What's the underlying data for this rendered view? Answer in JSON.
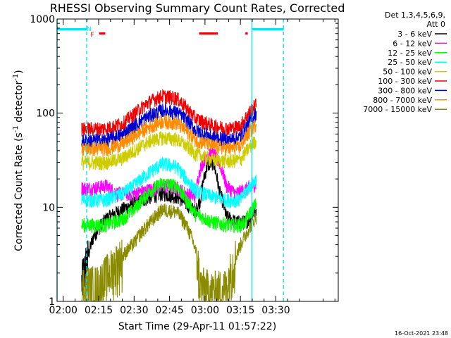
{
  "chart_data": {
    "type": "line",
    "title": "RHESSI Observing Summary Count Rates, Corrected",
    "xlabel": "Start Time (29-Apr-11 01:57:22)",
    "ylabel": "Corrected Count Rate (s",
    "ylabel_sup1": "-1",
    "ylabel_mid": " detector",
    "ylabel_sup2": "-1",
    "ylabel_end": ")",
    "footer": "16-Oct-2021 23:48",
    "y_scale": "log",
    "ylim": [
      1,
      1000
    ],
    "xlim_min": [
      117.4,
      236.4
    ],
    "x_unit": "minutes after 00:00 UT, 29-Apr-2011",
    "x_ticks": [
      {
        "min": 120,
        "label": "02:00"
      },
      {
        "min": 135,
        "label": "02:15"
      },
      {
        "min": 150,
        "label": "02:30"
      },
      {
        "min": 165,
        "label": "02:45"
      },
      {
        "min": 180,
        "label": "03:00"
      },
      {
        "min": 195,
        "label": "03:15"
      },
      {
        "min": 210,
        "label": "03:30"
      }
    ],
    "y_ticks": [
      {
        "value": 1,
        "label": "1"
      },
      {
        "value": 10,
        "label": "10"
      },
      {
        "value": 100,
        "label": "100"
      },
      {
        "value": 1000,
        "label": "1000"
      }
    ],
    "legend_header": [
      "Det 1,3,4,5,6,9,",
      "Att 0"
    ],
    "legend_position": "right, outside plot",
    "night_lines_min": [
      117.4,
      129.9,
      199.9,
      213.2
    ],
    "flag_markers": [
      {
        "label": "N",
        "color": "#00e5ee",
        "min": 130.9
      },
      {
        "label": "F",
        "color": "#ee0000",
        "min": 132.3
      }
    ],
    "flag_bars": [
      {
        "color": "#ee0000",
        "start": 135.2,
        "end": 137.8
      },
      {
        "color": "#ee0000",
        "start": 177.5,
        "end": 185.4
      },
      {
        "color": "#ee0000",
        "start": 197.1,
        "end": 198.1
      }
    ],
    "saa_bars": [
      {
        "color": "#00e5ee",
        "start": 117.4,
        "end": 130.0
      },
      {
        "color": "#00e5ee",
        "start": 200.1,
        "end": 213.3
      }
    ],
    "series": [
      {
        "name": "3 - 6 keV",
        "color": "#000000",
        "key_min": [
          127.8,
          130.5,
          133,
          138,
          145,
          150,
          157,
          162,
          168,
          172,
          176,
          178,
          181,
          183.5,
          186,
          189,
          193,
          197,
          199,
          201.7
        ],
        "key_val": [
          1.6,
          3,
          5,
          7.5,
          9.5,
          11,
          13,
          14,
          13,
          11,
          9,
          12,
          28,
          30,
          15,
          8,
          7,
          7,
          7.5,
          9.5
        ]
      },
      {
        "name": "6 - 12 keV",
        "color": "#ff00ff",
        "key_min": [
          127.8,
          133,
          138,
          143,
          150,
          157,
          162,
          168,
          172,
          176,
          178,
          181,
          183.5,
          186,
          189,
          193,
          197,
          201.7
        ],
        "key_val": [
          16,
          16,
          17,
          14,
          14,
          15.5,
          17,
          16,
          14,
          13,
          26,
          37,
          37,
          30,
          17,
          14,
          15.5,
          18
        ]
      },
      {
        "name": "12 - 25 keV",
        "color": "#00ff00",
        "key_min": [
          127.8,
          138,
          145,
          150,
          157,
          162,
          168,
          172,
          176,
          183,
          190,
          195,
          197,
          201.7
        ],
        "key_val": [
          6.5,
          6.5,
          7.5,
          9.5,
          15,
          18,
          17,
          12,
          8.5,
          7,
          6.5,
          6.5,
          7,
          11
        ]
      },
      {
        "name": "25 - 50 keV",
        "color": "#00ffff",
        "key_min": [
          127.8,
          138,
          145,
          150,
          157,
          162,
          168,
          172,
          176,
          183,
          190,
          195,
          201.7
        ],
        "key_val": [
          12,
          12,
          14,
          17,
          24,
          29,
          27,
          20,
          15,
          13,
          12,
          12,
          20
        ]
      },
      {
        "name": "50 - 100 keV",
        "color": "#cccc00",
        "key_min": [
          127.8,
          138,
          145,
          150,
          157,
          162,
          168,
          172,
          176,
          183,
          190,
          195,
          201.7
        ],
        "key_val": [
          30,
          30,
          33,
          40,
          51,
          55,
          53,
          45,
          37,
          32,
          31,
          32,
          52
        ]
      },
      {
        "name": "100 - 300 keV",
        "color": "#ee0000",
        "key_min": [
          127.8,
          138,
          145,
          150,
          157,
          162,
          168,
          172,
          176,
          183,
          190,
          195,
          201.7
        ],
        "key_val": [
          68,
          69,
          77,
          98,
          135,
          153,
          145,
          115,
          88,
          74,
          69,
          73,
          125
        ]
      },
      {
        "name": "300 - 800 keV",
        "color": "#0000cc",
        "key_min": [
          127.8,
          138,
          145,
          150,
          157,
          162,
          168,
          172,
          176,
          183,
          190,
          195,
          201.7
        ],
        "key_val": [
          51,
          52,
          59,
          73,
          96,
          108,
          103,
          85,
          66,
          56,
          52,
          56,
          100
        ]
      },
      {
        "name": "800 - 7000 keV",
        "color": "#ff8c00",
        "key_min": [
          127.8,
          138,
          145,
          150,
          157,
          162,
          168,
          172,
          176,
          183,
          190,
          195,
          201.7
        ],
        "key_val": [
          42,
          42,
          47,
          57,
          73,
          82,
          79,
          65,
          52,
          45,
          42,
          44,
          78
        ]
      },
      {
        "name": "7000 - 15000 keV",
        "color": "#8b8b00",
        "key_min": [
          127.8,
          135,
          140,
          145,
          150,
          157,
          162,
          168,
          172,
          176,
          178,
          183,
          189,
          193,
          197,
          201.7
        ],
        "key_val": [
          1.5,
          1.5,
          2.2,
          3,
          4.2,
          7,
          9.5,
          9,
          6.5,
          3.5,
          1.5,
          1.3,
          1.4,
          3,
          5,
          8
        ]
      }
    ]
  }
}
